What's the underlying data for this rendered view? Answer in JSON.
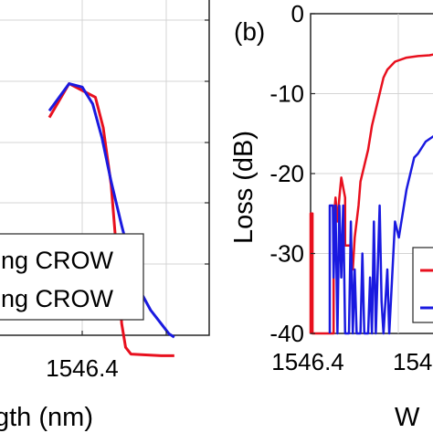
{
  "chart_data": [
    {
      "type": "line",
      "panel": "left (cropped)",
      "xlabel_visible": "gth (nm)",
      "xticks": [
        1546.4
      ],
      "xtick_labels": [
        "1546.4"
      ],
      "grid": true,
      "legend_position": "bottom-right",
      "legend_entries": [
        "ng CROW",
        "ng CROW"
      ],
      "series": [
        {
          "color": "#e8101e",
          "points": [
            [
              -0.25,
              2.2
            ],
            [
              -0.1,
              3.2
            ],
            [
              0.0,
              3.0
            ],
            [
              0.1,
              2.8
            ],
            [
              0.16,
              1.9
            ],
            [
              0.22,
              0.2
            ],
            [
              0.27,
              -2.2
            ],
            [
              0.3,
              -3.9
            ],
            [
              0.33,
              -4.6
            ],
            [
              0.37,
              -4.8
            ],
            [
              0.45,
              -4.82
            ],
            [
              0.6,
              -4.85
            ],
            [
              0.7,
              -4.85
            ]
          ]
        },
        {
          "color": "#1a1ae0",
          "points": [
            [
              -0.25,
              2.4
            ],
            [
              -0.1,
              3.2
            ],
            [
              0.0,
              3.1
            ],
            [
              0.08,
              2.6
            ],
            [
              0.15,
              1.6
            ],
            [
              0.22,
              0.3
            ],
            [
              0.3,
              -1.0
            ],
            [
              0.38,
              -2.2
            ],
            [
              0.45,
              -3.0
            ],
            [
              0.52,
              -3.5
            ],
            [
              0.6,
              -3.9
            ],
            [
              0.66,
              -4.2
            ],
            [
              0.7,
              -4.3
            ]
          ]
        }
      ]
    },
    {
      "type": "line",
      "panel_label": "(b)",
      "ylabel": "Loss (dB)",
      "xlabel_visible": "W",
      "ylim": [
        -40,
        0
      ],
      "yticks": [
        0,
        -10,
        -20,
        -30,
        -40
      ],
      "ytick_labels": [
        "0",
        "-10",
        "-20",
        "-30",
        "-40"
      ],
      "xtick_labels": [
        "1546.4",
        "154"
      ],
      "grid": true,
      "legend_position": "bottom-right",
      "series": [
        {
          "color": "#e8101e",
          "points": [
            [
              0.0,
              -40
            ],
            [
              0.0,
              -25
            ],
            [
              0.005,
              -25
            ],
            [
              0.005,
              -40
            ],
            [
              0.06,
              -40
            ],
            [
              0.06,
              -26
            ],
            [
              0.065,
              -23
            ],
            [
              0.07,
              -26
            ],
            [
              0.075,
              -23
            ],
            [
              0.08,
              -20.5
            ],
            [
              0.09,
              -23
            ],
            [
              0.09,
              -29
            ],
            [
              0.105,
              -29
            ],
            [
              0.11,
              -32
            ],
            [
              0.115,
              -28
            ],
            [
              0.12,
              -26
            ],
            [
              0.125,
              -24
            ],
            [
              0.13,
              -21
            ],
            [
              0.14,
              -19
            ],
            [
              0.15,
              -17
            ],
            [
              0.16,
              -14
            ],
            [
              0.17,
              -12
            ],
            [
              0.18,
              -10
            ],
            [
              0.19,
              -8
            ],
            [
              0.2,
              -7
            ],
            [
              0.22,
              -6
            ],
            [
              0.25,
              -5.5
            ],
            [
              0.28,
              -5.3
            ],
            [
              0.31,
              -5.2
            ],
            [
              0.33,
              -5.0
            ]
          ]
        },
        {
          "color": "#1a1ae0",
          "points": [
            [
              0.05,
              -40
            ],
            [
              0.05,
              -24
            ],
            [
              0.058,
              -24
            ],
            [
              0.06,
              -33
            ],
            [
              0.065,
              -24
            ],
            [
              0.07,
              -40
            ],
            [
              0.075,
              -24
            ],
            [
              0.08,
              -33
            ],
            [
              0.085,
              -24
            ],
            [
              0.09,
              -40
            ],
            [
              0.1,
              -40
            ],
            [
              0.105,
              -26
            ],
            [
              0.11,
              -40
            ],
            [
              0.115,
              -32
            ],
            [
              0.12,
              -40
            ],
            [
              0.13,
              -40
            ],
            [
              0.135,
              -30
            ],
            [
              0.14,
              -40
            ],
            [
              0.15,
              -40
            ],
            [
              0.155,
              -33
            ],
            [
              0.16,
              -40
            ],
            [
              0.165,
              -26
            ],
            [
              0.17,
              -40
            ],
            [
              0.18,
              -24
            ],
            [
              0.185,
              -36
            ],
            [
              0.19,
              -40
            ],
            [
              0.2,
              -32
            ],
            [
              0.205,
              -40
            ],
            [
              0.22,
              -26
            ],
            [
              0.23,
              -28
            ],
            [
              0.24,
              -25
            ],
            [
              0.25,
              -22
            ],
            [
              0.26,
              -20
            ],
            [
              0.27,
              -18
            ],
            [
              0.28,
              -17.5
            ],
            [
              0.3,
              -16
            ],
            [
              0.33,
              -15
            ]
          ]
        }
      ]
    }
  ]
}
